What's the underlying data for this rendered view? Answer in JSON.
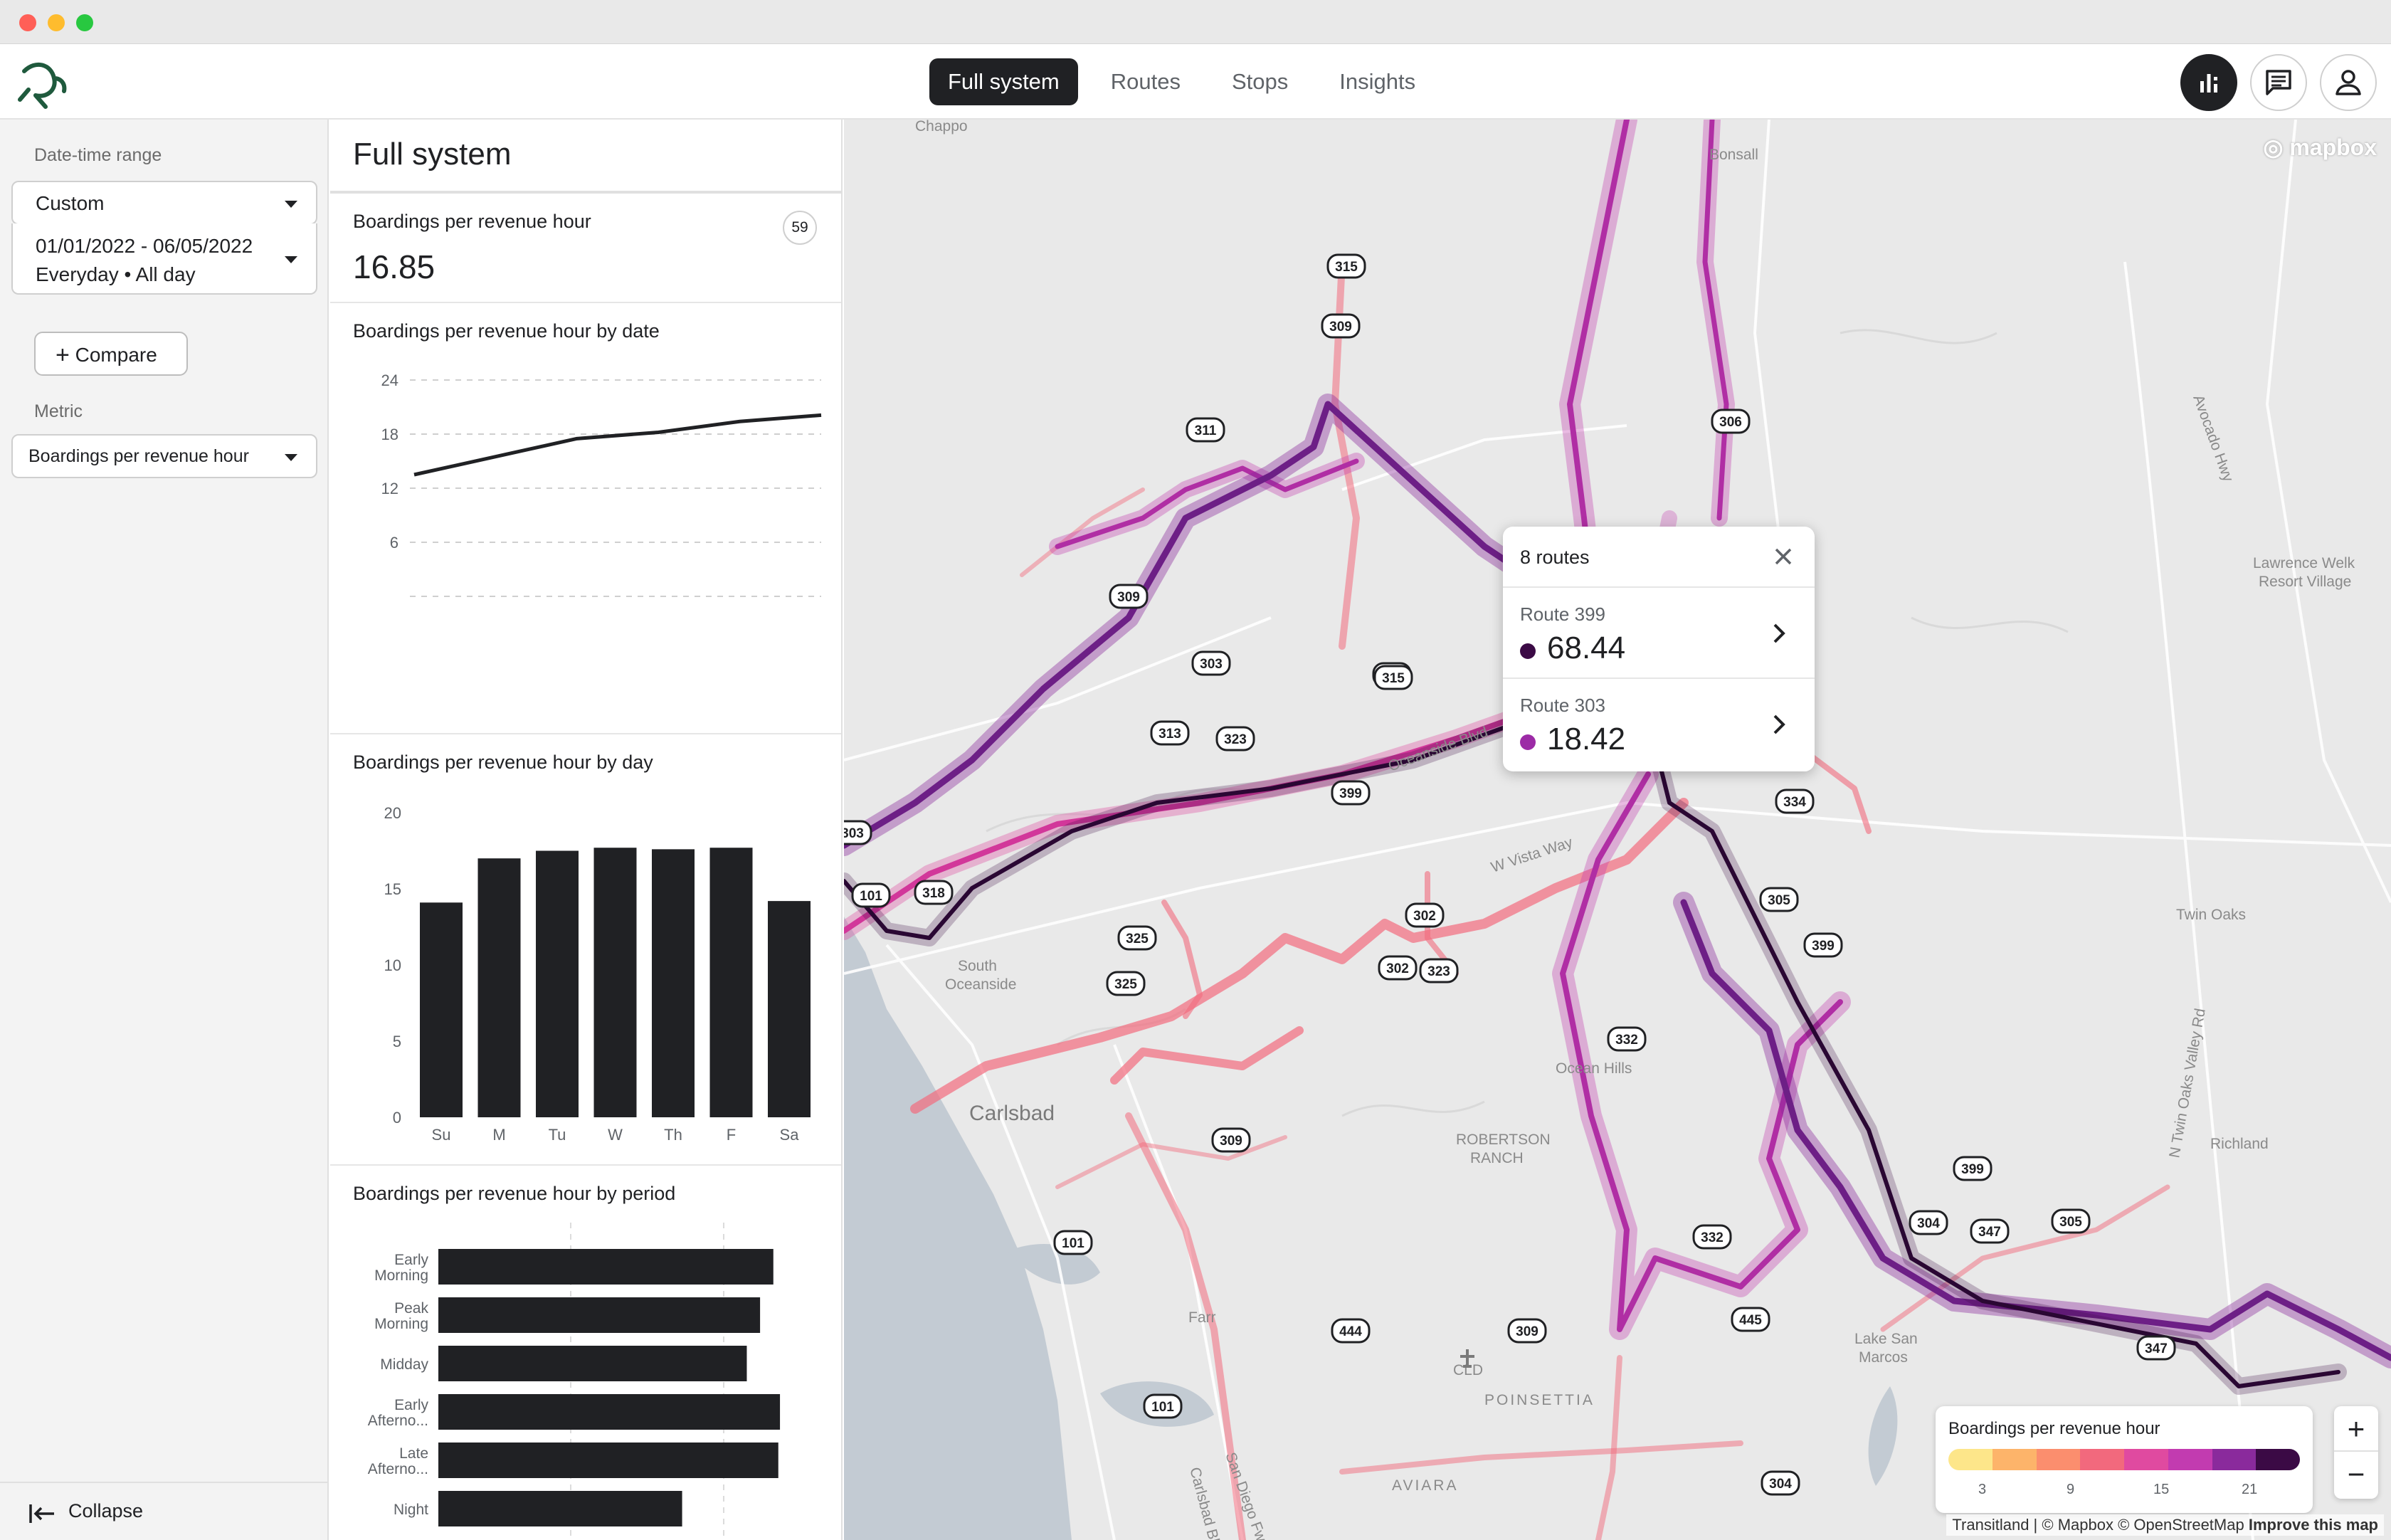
{
  "nav": {
    "tabs": [
      {
        "label": "Full system",
        "active": true
      },
      {
        "label": "Routes",
        "active": false
      },
      {
        "label": "Stops",
        "active": false
      },
      {
        "label": "Insights",
        "active": false
      }
    ],
    "icons": [
      "bar-chart-icon",
      "chat-icon",
      "user-icon"
    ]
  },
  "sidebar": {
    "date_range_label": "Date-time range",
    "range_select": "Custom",
    "date_line1": "01/01/2022 - 06/05/2022",
    "date_line2": "Everyday • All day",
    "compare_label": "Compare",
    "metric_label": "Metric",
    "metric_select": "Boardings per revenue hour",
    "collapse_label": "Collapse"
  },
  "panel": {
    "title": "Full system",
    "summary_title": "Boardings per revenue hour",
    "summary_badge": "59",
    "summary_value": "16.85",
    "date_chart_title": "Boardings per revenue hour by date",
    "day_chart_title": "Boardings per revenue hour by day",
    "period_chart_title": "Boardings per revenue hour by period"
  },
  "chart_data": [
    {
      "type": "line",
      "title": "Boardings per revenue hour by date",
      "x": [
        0,
        1,
        2,
        3,
        4,
        5
      ],
      "values": [
        13.5,
        15.5,
        17.5,
        18.2,
        19.4,
        20.1
      ],
      "yticks": [
        "24",
        "18",
        "12",
        "6"
      ],
      "ylim": [
        0,
        24
      ],
      "grid": true
    },
    {
      "type": "bar",
      "title": "Boardings per revenue hour by day",
      "categories": [
        "Su",
        "M",
        "Tu",
        "W",
        "Th",
        "F",
        "Sa"
      ],
      "values": [
        14.1,
        17.0,
        17.5,
        17.7,
        17.6,
        17.7,
        14.2
      ],
      "yticks": [
        "20",
        "15",
        "10",
        "5",
        "0"
      ],
      "ylim": [
        0,
        20
      ]
    },
    {
      "type": "bar",
      "orientation": "horizontal",
      "title": "Boardings per revenue hour by period",
      "categories": [
        [
          "Early",
          "Morning"
        ],
        [
          "Peak",
          "Morning"
        ],
        [
          "Midday"
        ],
        [
          "Early",
          "Afterno..."
        ],
        [
          "Late",
          "Afterno..."
        ],
        [
          "Night"
        ]
      ],
      "values": [
        20.2,
        19.4,
        18.6,
        20.6,
        20.5,
        14.7
      ],
      "xlim": [
        0,
        23
      ]
    }
  ],
  "map": {
    "popup": {
      "header": "8 routes",
      "routes": [
        {
          "name": "Route 399",
          "value": "68.44",
          "color": "#3b0a45"
        },
        {
          "name": "Route 303",
          "value": "18.42",
          "color": "#9c2ba6"
        }
      ]
    },
    "legend": {
      "title": "Boardings per revenue hour",
      "colors": [
        "#fde68a",
        "#fdb46a",
        "#fb8e6e",
        "#f2697d",
        "#e04aa0",
        "#c23bb0",
        "#8a2a9c",
        "#3b0a45"
      ],
      "ticks": [
        "3",
        "9",
        "15",
        "21"
      ]
    },
    "zoom": {
      "in": "+",
      "out": "−"
    },
    "mapbox": "mapbox",
    "attribution": "Transitland | © Mapbox © OpenStreetMap",
    "improve": "Improve this map",
    "places": [
      {
        "name": "Chappo"
      },
      {
        "name": "Bonsall"
      },
      {
        "name": "Avocado Hwy"
      },
      {
        "name": "Lawrence Welk"
      },
      {
        "name": "Resort Village"
      },
      {
        "name": "South"
      },
      {
        "name": "Oceanside"
      },
      {
        "name": "Carlsbad"
      },
      {
        "name": "ROBERTSON"
      },
      {
        "name": "RANCH"
      },
      {
        "name": "Ocean Hills"
      },
      {
        "name": "Twin Oaks"
      },
      {
        "name": "Richland"
      },
      {
        "name": "N Twin Oaks Valley Rd"
      },
      {
        "name": "Lake San"
      },
      {
        "name": "Marcos"
      },
      {
        "name": "POINSETTIA"
      },
      {
        "name": "AVIARA"
      },
      {
        "name": "CLD"
      },
      {
        "name": "Carlsbad Bl"
      },
      {
        "name": "San Diego Fwy"
      },
      {
        "name": "Farr"
      },
      {
        "name": "W Vista Way"
      },
      {
        "name": "Oceanside Blvd"
      }
    ],
    "shields": [
      "315",
      "309",
      "311",
      "303",
      "309",
      "315",
      "313",
      "323",
      "399",
      "303",
      "306",
      "101",
      "318",
      "325",
      "302",
      "325",
      "302",
      "323",
      "334",
      "305",
      "399",
      "332",
      "315",
      "309",
      "101",
      "332",
      "399",
      "304",
      "347",
      "305",
      "445",
      "444",
      "309",
      "347",
      "101",
      "304"
    ]
  }
}
